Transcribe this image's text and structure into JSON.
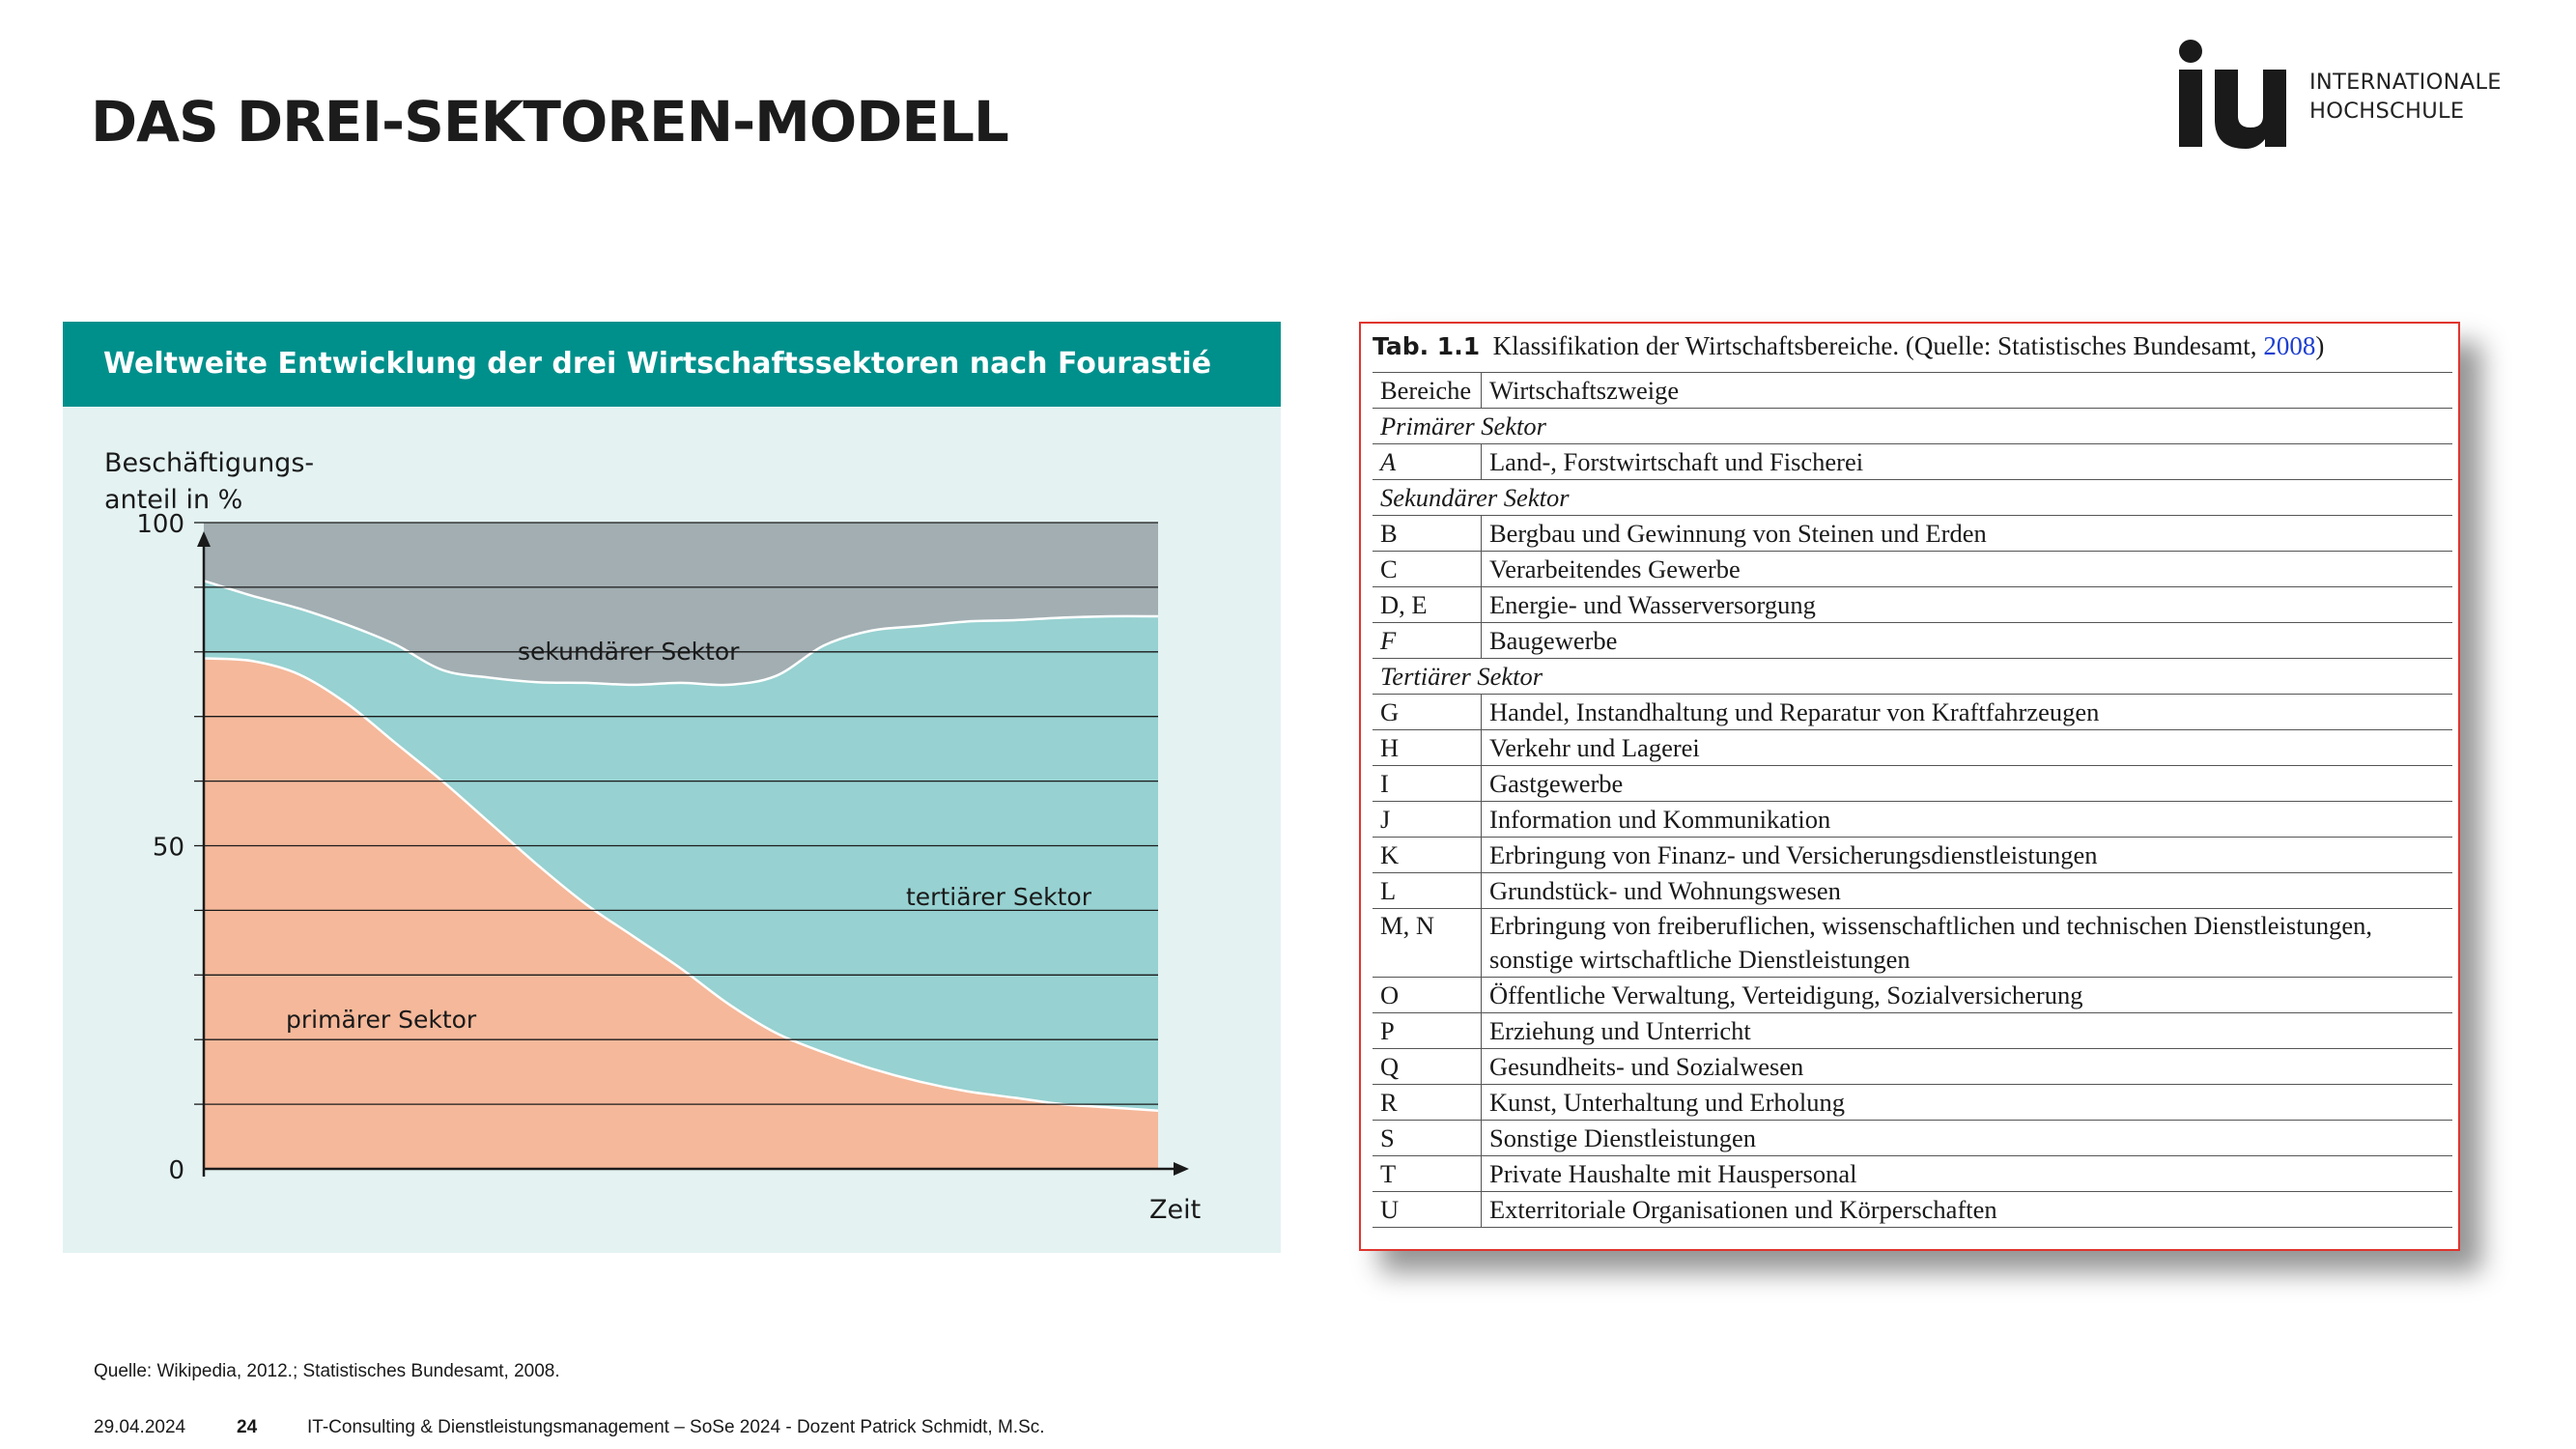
{
  "slide": {
    "title": "DAS DREI-SEKTOREN-MODELL"
  },
  "logo": {
    "line1": "INTERNATIONALE",
    "line2": "HOCHSCHULE",
    "mark_icon": "iu-logo-mark",
    "mark_color": "#1a1a1a"
  },
  "chart_panel": {
    "header": "Weltweite Entwicklung der drei Wirtschaftssektoren nach Fourastié",
    "header_color": "#00908c",
    "background_color": "#e4f2f2"
  },
  "chart_data": {
    "type": "area",
    "stacked": true,
    "title": "Weltweite Entwicklung der drei Wirtschaftssektoren nach Fourastié",
    "ylabel_line1": "Beschäftigungs-",
    "ylabel_line2": "anteil in %",
    "xlabel": "Zeit",
    "ylim": [
      0,
      100
    ],
    "yticks": [
      "100",
      "50",
      "0"
    ],
    "ytick_values": [
      100,
      50,
      0
    ],
    "gridlines": [
      0,
      10,
      20,
      30,
      40,
      50,
      60,
      70,
      80,
      90,
      100
    ],
    "x": [
      0,
      0.05,
      0.1,
      0.15,
      0.2,
      0.25,
      0.3,
      0.35,
      0.4,
      0.45,
      0.5,
      0.55,
      0.6,
      0.65,
      0.7,
      0.75,
      0.8,
      0.85,
      0.9,
      0.95,
      1.0
    ],
    "series": [
      {
        "name": "primärer Sektor",
        "color": "#f5b89a",
        "values": [
          79,
          78.6,
          76.5,
          72,
          66,
          60,
          53.5,
          47,
          41,
          36,
          31,
          25.5,
          21,
          18,
          15.5,
          13.5,
          12,
          11,
          10,
          9.5,
          9
        ]
      },
      {
        "name": "tertiärer Sektor",
        "color": "#97d1d1",
        "values": [
          12,
          10.1,
          10.2,
          12.2,
          15.2,
          17.2,
          22.5,
          28.3,
          34.2,
          38.9,
          44.2,
          49.4,
          55.3,
          63,
          67.8,
          70.5,
          72.7,
          73.9,
          75.3,
          76,
          76.5
        ]
      },
      {
        "name": "sekundärer Sektor",
        "color": "#a2aeb2",
        "values": [
          9,
          11.3,
          13.3,
          15.8,
          18.8,
          22.8,
          24,
          24.7,
          24.8,
          25.1,
          24.8,
          25.1,
          23.7,
          19,
          16.7,
          16,
          15.3,
          15.1,
          14.7,
          14.5,
          14.5
        ]
      }
    ],
    "boundary_color": "#ffffff",
    "grid": true
  },
  "table": {
    "caption_label": "Tab. 1.1",
    "caption_text": "Klassifikation der Wirtschaftsbereiche. (Quelle: Statistisches Bundesamt, ",
    "caption_year": "2008",
    "caption_end": ")",
    "columns": [
      "Bereiche",
      "Wirtschaftszweige"
    ],
    "rows": [
      {
        "sector": "Primärer Sektor"
      },
      {
        "code": "A",
        "italic": true,
        "name": "Land-, Forstwirtschaft und Fischerei"
      },
      {
        "sector": "Sekundärer Sektor"
      },
      {
        "code": "B",
        "name": "Bergbau und Gewinnung von Steinen und Erden"
      },
      {
        "code": "C",
        "name": "Verarbeitendes Gewerbe"
      },
      {
        "code": "D, E",
        "name": "Energie- und Wasserversorgung"
      },
      {
        "code": "F",
        "italic": true,
        "name": "Baugewerbe"
      },
      {
        "sector": "Tertiärer Sektor"
      },
      {
        "code": "G",
        "name": "Handel, Instandhaltung und Reparatur von Kraftfahrzeugen"
      },
      {
        "code": "H",
        "name": "Verkehr und Lagerei"
      },
      {
        "code": "I",
        "name": "Gastgewerbe"
      },
      {
        "code": "J",
        "name": "Information und Kommunikation"
      },
      {
        "code": "K",
        "name": "Erbringung von Finanz- und Versicherungsdienstleistungen"
      },
      {
        "code": "L",
        "name": "Grundstück- und Wohnungswesen"
      },
      {
        "code": "M, N",
        "name": "Erbringung von freiberuflichen, wissenschaftlichen und technischen Dienstleistungen,",
        "name2": "sonstige wirtschaftliche Dienstleistungen"
      },
      {
        "code": "O",
        "name": "Öffentliche Verwaltung, Verteidigung, Sozialversicherung"
      },
      {
        "code": "P",
        "name": "Erziehung und Unterricht"
      },
      {
        "code": "Q",
        "name": "Gesundheits- und Sozialwesen"
      },
      {
        "code": "R",
        "name": "Kunst, Unterhaltung und Erholung"
      },
      {
        "code": "S",
        "name": "Sonstige Dienstleistungen"
      },
      {
        "code": "T",
        "name": "Private Haushalte mit Hauspersonal"
      },
      {
        "code": "U",
        "name": "Exterritoriale Organisationen und Körperschaften"
      }
    ],
    "border_color": "#e0352e",
    "link_color": "#1d3fd0"
  },
  "footer": {
    "source": "Quelle: Wikipedia, 2012.; Statistisches Bundesamt, 2008.",
    "date": "29.04.2024",
    "page": "24",
    "course": "IT-Consulting & Dienstleistungsmanagement – SoSe 2024 - Dozent Patrick Schmidt, M.Sc."
  }
}
